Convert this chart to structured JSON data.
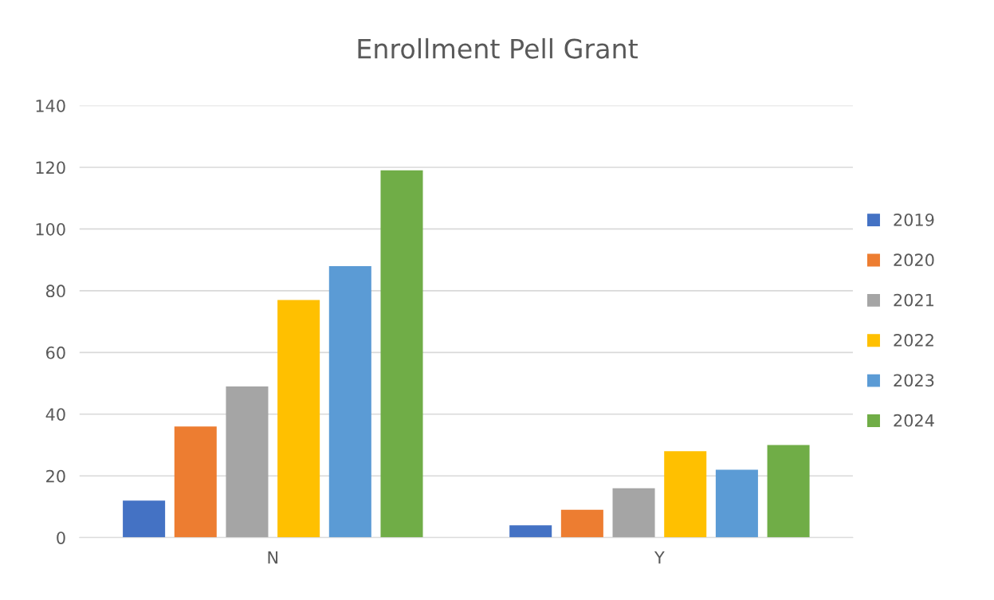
{
  "chart_data": {
    "type": "bar",
    "title": "Enrollment Pell Grant",
    "categories": [
      "N",
      "Y"
    ],
    "series": [
      {
        "name": "2019",
        "color": "#4472c4",
        "values": [
          12,
          4
        ]
      },
      {
        "name": "2020",
        "color": "#ed7d31",
        "values": [
          36,
          9
        ]
      },
      {
        "name": "2021",
        "color": "#a5a5a5",
        "values": [
          49,
          16
        ]
      },
      {
        "name": "2022",
        "color": "#ffc000",
        "values": [
          77,
          28
        ]
      },
      {
        "name": "2023",
        "color": "#5b9bd5",
        "values": [
          88,
          22
        ]
      },
      {
        "name": "2024",
        "color": "#70ad47",
        "values": [
          119,
          30
        ]
      }
    ],
    "ylim": [
      0,
      140
    ],
    "yticks": [
      0,
      20,
      40,
      60,
      80,
      100,
      120,
      140
    ],
    "grid": "y",
    "legend": "right"
  }
}
